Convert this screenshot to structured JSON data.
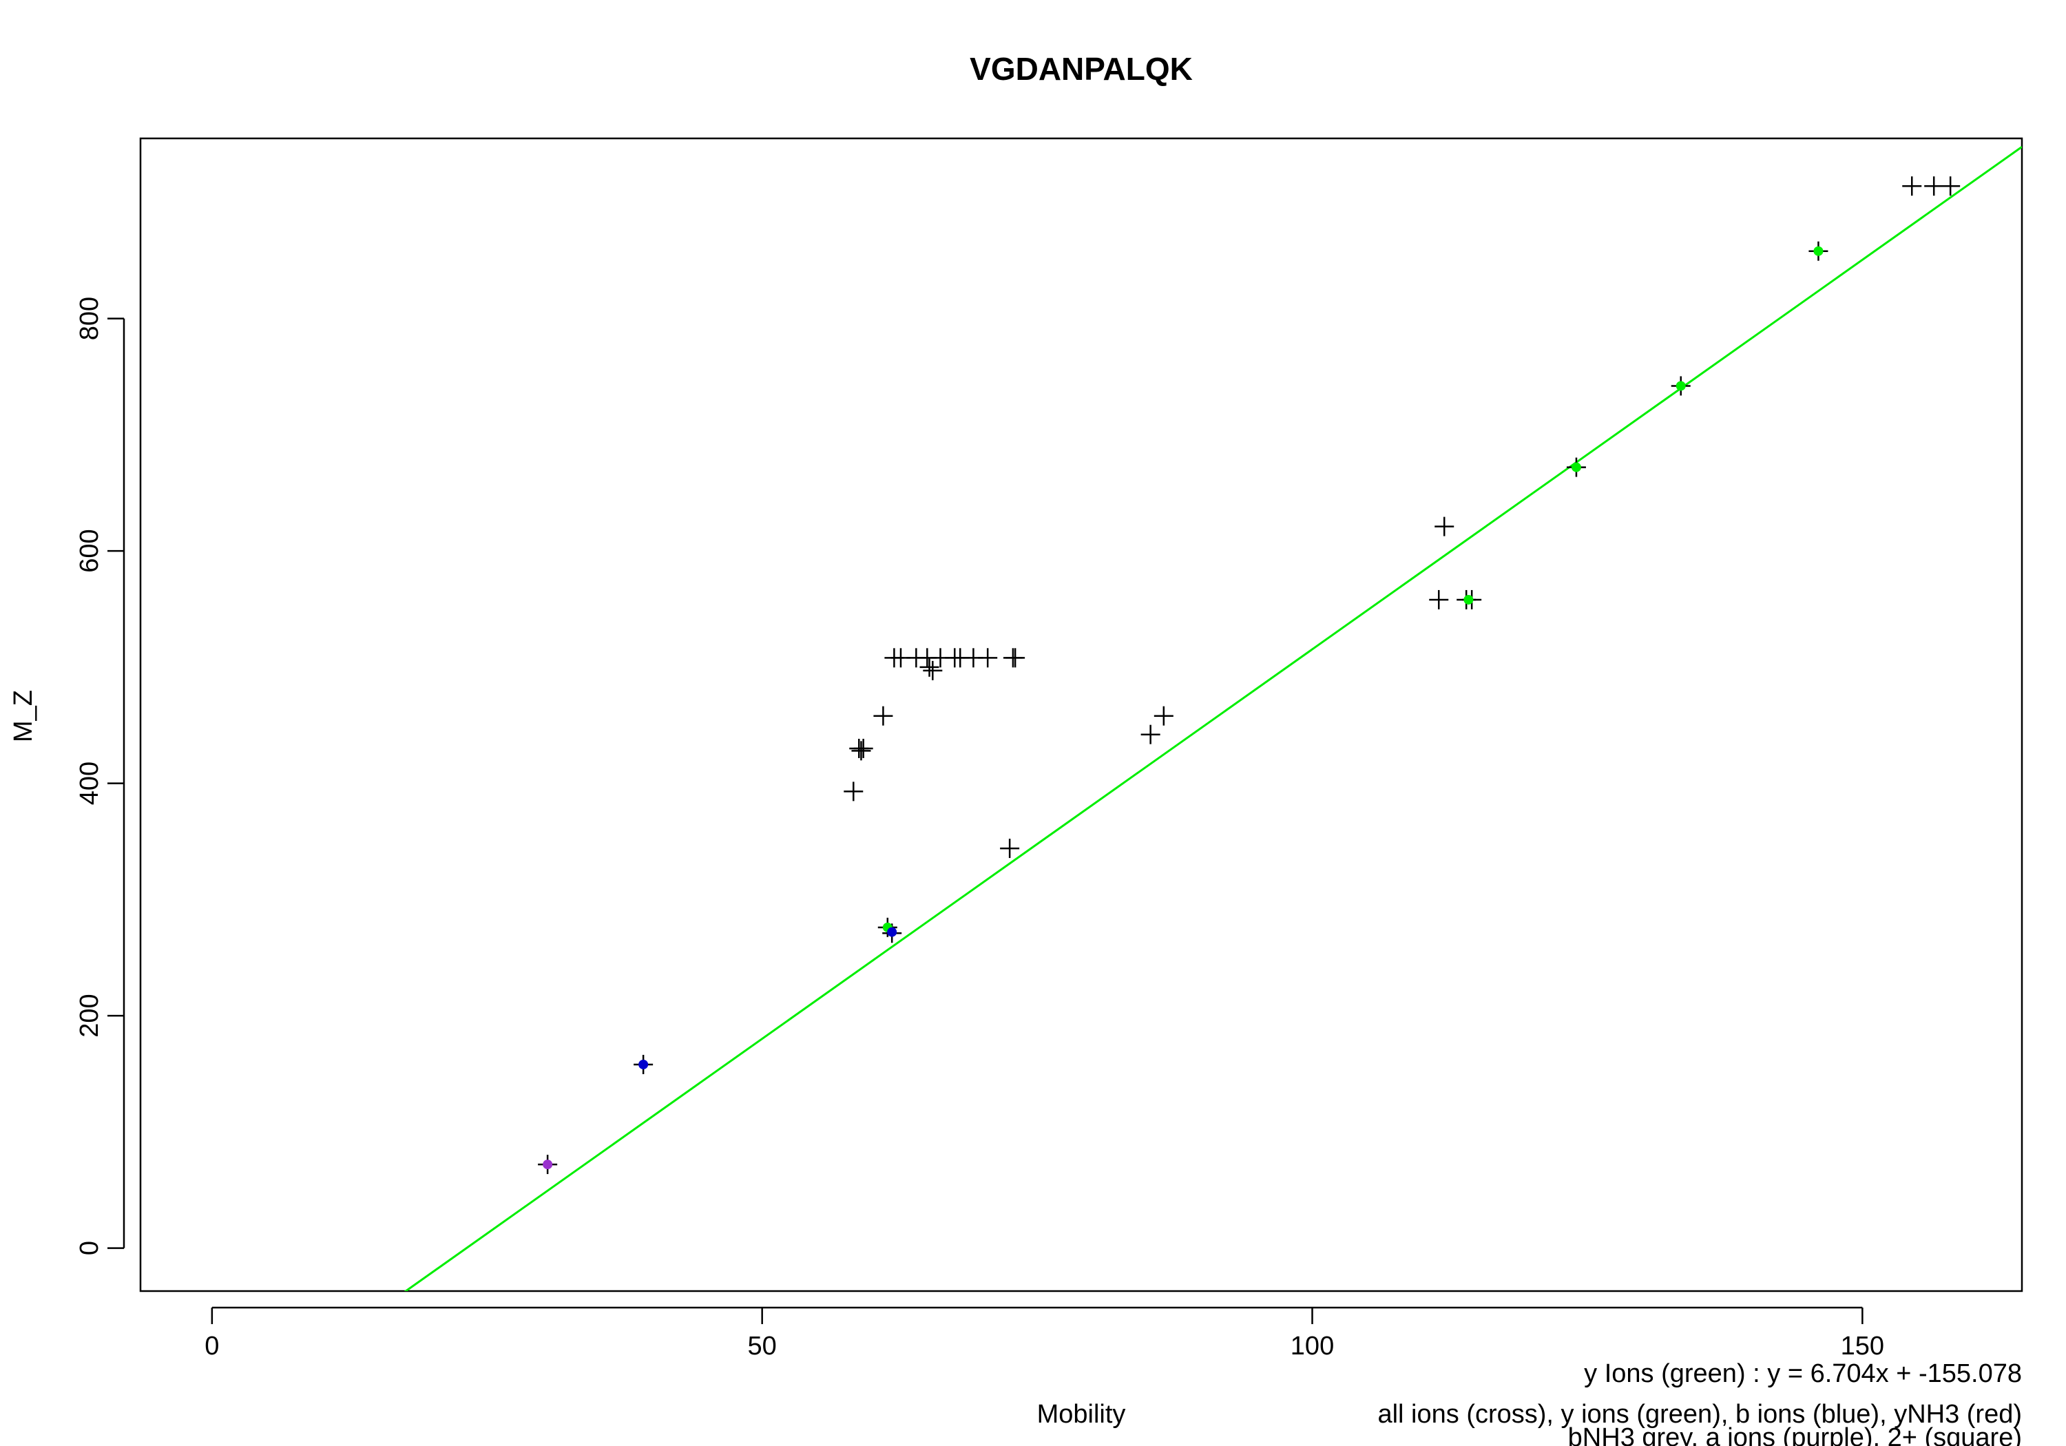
{
  "chart_data": {
    "type": "scatter",
    "title": "VGDANPALQK",
    "xlabel": "Mobility",
    "ylabel": "M_Z",
    "xlim": [
      -6.5,
      164.5
    ],
    "ylim": [
      -37,
      955
    ],
    "xticks": [
      0,
      50,
      100,
      150
    ],
    "yticks": [
      0,
      200,
      400,
      600,
      800
    ],
    "grid": false,
    "fit_line": {
      "label": "y Ions (green) : y = 6.704x + -155.078",
      "slope": 6.704,
      "intercept": -155.078,
      "color": "#00ee00"
    },
    "legend_text": [
      "all ions (cross), y ions (green), b ions (blue), yNH3 (red)",
      "bNH3 grey, a ions (purple), 2+ (square)"
    ],
    "colors": {
      "all": "#000000",
      "y": "#00ee00",
      "b": "#0000cc",
      "a": "#9a32cd"
    },
    "series": [
      {
        "name": "all ions (cross)",
        "marker": "cross",
        "color": "#000000",
        "points": [
          [
            30.5,
            72
          ],
          [
            39.2,
            158
          ],
          [
            58.3,
            393
          ],
          [
            58.8,
            430
          ],
          [
            59.0,
            428
          ],
          [
            59.2,
            430
          ],
          [
            61.0,
            458
          ],
          [
            61.4,
            276
          ],
          [
            61.8,
            271
          ],
          [
            62.0,
            508
          ],
          [
            62.6,
            508
          ],
          [
            64.0,
            508
          ],
          [
            65.0,
            508
          ],
          [
            65.2,
            500
          ],
          [
            65.5,
            497
          ],
          [
            66.2,
            508
          ],
          [
            67.5,
            508
          ],
          [
            68.0,
            508
          ],
          [
            69.2,
            508
          ],
          [
            70.5,
            508
          ],
          [
            72.5,
            344
          ],
          [
            72.8,
            508
          ],
          [
            73.0,
            508
          ],
          [
            85.3,
            442
          ],
          [
            86.5,
            458
          ],
          [
            111.5,
            558
          ],
          [
            112.0,
            621
          ],
          [
            114.0,
            558
          ],
          [
            114.5,
            558
          ],
          [
            124.0,
            672
          ],
          [
            133.5,
            742
          ],
          [
            146.0,
            858
          ],
          [
            154.5,
            914
          ],
          [
            156.5,
            914
          ],
          [
            158.0,
            914
          ]
        ]
      },
      {
        "name": "y ions (green)",
        "marker": "dot",
        "color": "#00ee00",
        "points": [
          [
            61.4,
            276
          ],
          [
            114.2,
            558
          ],
          [
            124.0,
            672
          ],
          [
            133.5,
            742
          ],
          [
            146.0,
            858
          ]
        ]
      },
      {
        "name": "b ions (blue)",
        "marker": "dot",
        "color": "#0000cc",
        "points": [
          [
            39.2,
            158
          ],
          [
            61.8,
            272
          ]
        ]
      },
      {
        "name": "a ions (purple)",
        "marker": "dot",
        "color": "#9a32cd",
        "points": [
          [
            30.5,
            72
          ]
        ]
      }
    ]
  }
}
